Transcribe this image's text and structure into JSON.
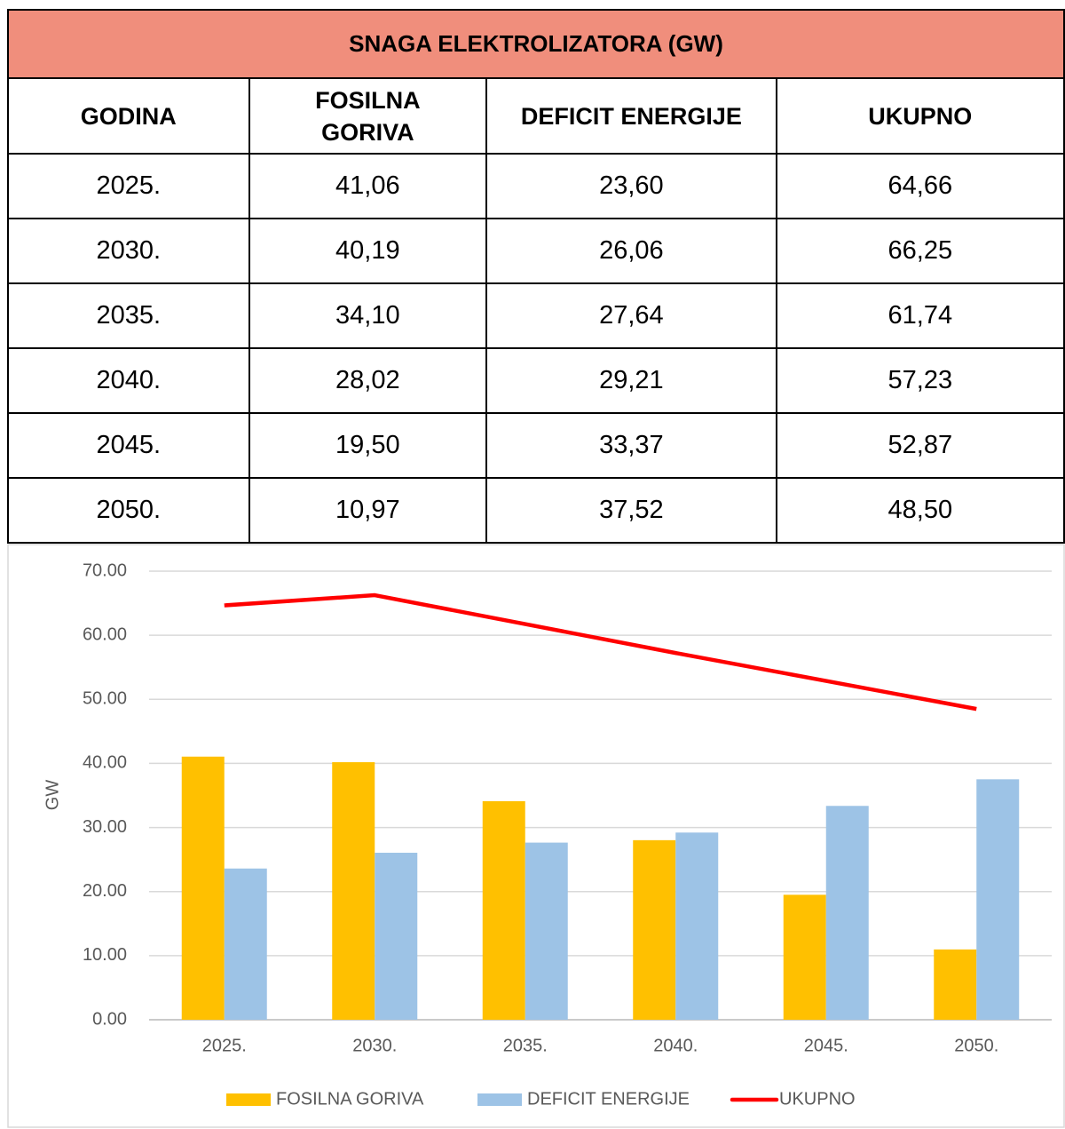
{
  "table": {
    "title": "SNAGA ELEKTROLIZATORA (GW)",
    "columns": [
      "GODINA",
      "FOSILNA GORIVA",
      "DEFICIT ENERGIJE",
      "UKUPNO"
    ],
    "rows": [
      [
        "2025.",
        "41,06",
        "23,60",
        "64,66"
      ],
      [
        "2030.",
        "40,19",
        "26,06",
        "66,25"
      ],
      [
        "2035.",
        "34,10",
        "27,64",
        "61,74"
      ],
      [
        "2040.",
        "28,02",
        "29,21",
        "57,23"
      ],
      [
        "2045.",
        "19,50",
        "33,37",
        "52,87"
      ],
      [
        "2050.",
        "10,97",
        "37,52",
        "48,50"
      ]
    ]
  },
  "chart_data": {
    "type": "bar",
    "y_label": "GW",
    "categories": [
      "2025.",
      "2030.",
      "2035.",
      "2040.",
      "2045.",
      "2050."
    ],
    "series": [
      {
        "name": "FOSILNA GORIVA",
        "type": "bar",
        "color": "#ffc000",
        "values": [
          41.06,
          40.19,
          34.1,
          28.02,
          19.5,
          10.97
        ]
      },
      {
        "name": "DEFICIT ENERGIJE",
        "type": "bar",
        "color": "#9dc3e6",
        "values": [
          23.6,
          26.06,
          27.64,
          29.21,
          33.37,
          37.52
        ]
      },
      {
        "name": "UKUPNO",
        "type": "line",
        "color": "#ff0000",
        "values": [
          64.66,
          66.25,
          61.74,
          57.23,
          52.87,
          48.5
        ]
      }
    ],
    "ylim": [
      0,
      70
    ],
    "yticks": [
      {
        "value": 0,
        "label": "0.00"
      },
      {
        "value": 10,
        "label": "10.00"
      },
      {
        "value": 20,
        "label": "20.00"
      },
      {
        "value": 30,
        "label": "30.00"
      },
      {
        "value": 40,
        "label": "40.00"
      },
      {
        "value": 50,
        "label": "50.00"
      },
      {
        "value": 60,
        "label": "60.00"
      },
      {
        "value": 70,
        "label": "70.00"
      }
    ],
    "grid": true,
    "legend": "bottom"
  }
}
